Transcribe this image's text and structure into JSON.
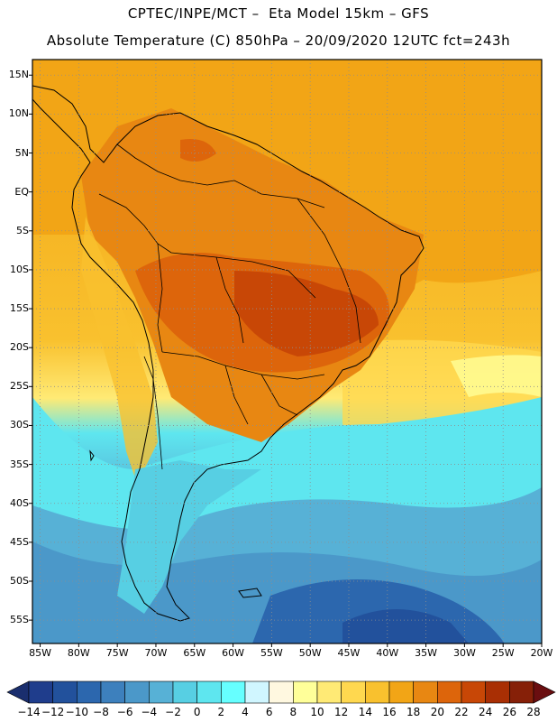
{
  "header": {
    "title_line1": "CPTEC/INPE/MCT –  Eta Model 15km – GFS",
    "title_line2": "Absolute Temperature (C) 850hPa – 20/09/2020 12UTC fct=243h"
  },
  "map": {
    "lat_labels": [
      "15N",
      "10N",
      "5N",
      "EQ",
      "5S",
      "10S",
      "15S",
      "20S",
      "25S",
      "30S",
      "35S",
      "40S",
      "45S",
      "50S",
      "55S"
    ],
    "lon_labels": [
      "85W",
      "80W",
      "75W",
      "70W",
      "65W",
      "60W",
      "55W",
      "50W",
      "45W",
      "40W",
      "35W",
      "30W",
      "25W",
      "20W"
    ],
    "lat_range": [
      17,
      -58
    ],
    "lon_range": [
      -86,
      -20
    ],
    "grid": "dotted"
  },
  "colorbar": {
    "labels": [
      "-14",
      "-12",
      "-10",
      "-8",
      "-6",
      "-4",
      "-2",
      "0",
      "2",
      "4",
      "6",
      "8",
      "10",
      "12",
      "14",
      "16",
      "18",
      "20",
      "22",
      "24",
      "26",
      "28"
    ],
    "colors": [
      "#1f3d8c",
      "#22519c",
      "#2c67ae",
      "#3d80bd",
      "#4b98c9",
      "#57b1d6",
      "#57cfe3",
      "#5ee6ef",
      "#66ffff",
      "#d0f6ff",
      "#fff8e0",
      "#ffff99",
      "#ffea75",
      "#ffd84f",
      "#f9c12e",
      "#f2a516",
      "#e88712",
      "#dd650b",
      "#c84706",
      "#a92f04",
      "#862008"
    ],
    "under_color": "#1a2e6e",
    "over_color": "#6a0e10"
  }
}
